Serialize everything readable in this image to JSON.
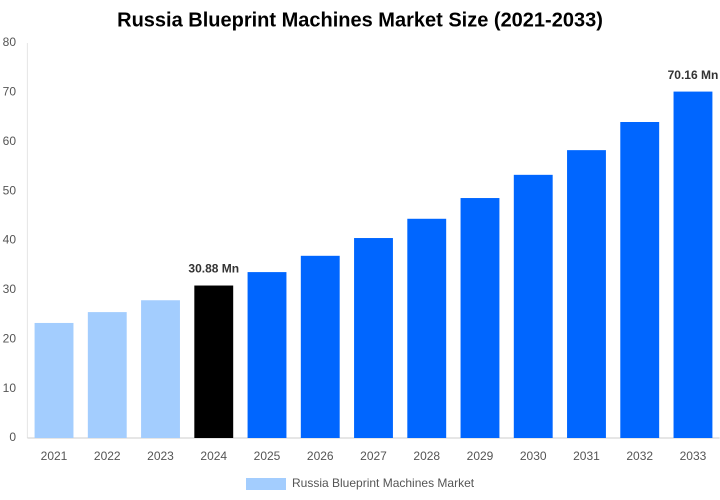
{
  "chart_data": {
    "type": "bar",
    "title": "Russia Blueprint Machines Market Size (2021-2033)",
    "categories": [
      "2021",
      "2022",
      "2023",
      "2024",
      "2025",
      "2026",
      "2027",
      "2028",
      "2029",
      "2030",
      "2031",
      "2032",
      "2033"
    ],
    "series": [
      {
        "name": "Russia Blueprint Machines Market",
        "color": "#a3cdfe",
        "colors": [
          "#a3cdfe",
          "#a3cdfe",
          "#a3cdfe",
          "#000000",
          "#0066ff",
          "#0066ff",
          "#0066ff",
          "#0066ff",
          "#0066ff",
          "#0066ff",
          "#0066ff",
          "#0066ff",
          "#0066ff"
        ],
        "values": [
          23.3,
          25.5,
          27.9,
          30.88,
          33.6,
          36.9,
          40.5,
          44.4,
          48.6,
          53.3,
          58.3,
          64.0,
          70.16
        ],
        "value_labels": [
          null,
          null,
          null,
          "30.88 Mn",
          null,
          null,
          null,
          null,
          null,
          null,
          null,
          null,
          "70.16 Mn"
        ]
      }
    ],
    "ylim": [
      0,
      80
    ],
    "yticks": [
      0,
      10,
      20,
      30,
      40,
      50,
      60,
      70,
      80
    ],
    "grid": false,
    "legend": "bottom"
  }
}
